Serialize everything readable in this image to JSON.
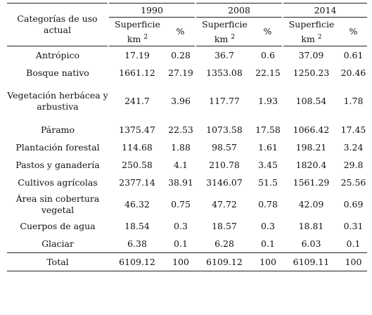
{
  "table": {
    "category_header": "Categorías de uso actual",
    "years": [
      "1990",
      "2008",
      "2014"
    ],
    "surface_label": "Superficie",
    "surface_unit": "km",
    "surface_unit_exp": "2",
    "percent_label": "%",
    "rows": [
      {
        "category": "Antrópico",
        "values": [
          "17.19",
          "0.28",
          "36.7",
          "0.6",
          "37.09",
          "0.61"
        ]
      },
      {
        "category": "Bosque nativo",
        "values": [
          "1661.12",
          "27.19",
          "1353.08",
          "22.15",
          "1250.23",
          "20.46"
        ]
      },
      {
        "category": "Vegetación herbácea y arbustiva",
        "values": [
          "241.7",
          "3.96",
          "117.77",
          "1.93",
          "108.54",
          "1.78"
        ]
      },
      {
        "category": "Páramo",
        "values": [
          "1375.47",
          "22.53",
          "1073.58",
          "17.58",
          "1066.42",
          "17.45"
        ]
      },
      {
        "category": "Plantación forestal",
        "values": [
          "114.68",
          "1.88",
          "98.57",
          "1.61",
          "198.21",
          "3.24"
        ]
      },
      {
        "category": "Pastos y ganadería",
        "values": [
          "250.58",
          "4.1",
          "210.78",
          "3.45",
          "1820.4",
          "29.8"
        ]
      },
      {
        "category": "Cultivos agrícolas",
        "values": [
          "2377.14",
          "38.91",
          "3146.07",
          "51.5",
          "1561.29",
          "25.56"
        ]
      },
      {
        "category": "Área sin cobertura vegetal",
        "values": [
          "46.32",
          "0.75",
          "47.72",
          "0.78",
          "42.09",
          "0.69"
        ]
      },
      {
        "category": "Cuerpos de agua",
        "values": [
          "18.54",
          "0.3",
          "18.57",
          "0.3",
          "18.81",
          "0.31"
        ]
      },
      {
        "category": "Glaciar",
        "values": [
          "6.38",
          "0.1",
          "6.28",
          "0.1",
          "6.03",
          "0.1"
        ]
      }
    ],
    "total": {
      "category": "Total",
      "values": [
        "6109.12",
        "100",
        "6109.12",
        "100",
        "6109.11",
        "100"
      ]
    }
  }
}
